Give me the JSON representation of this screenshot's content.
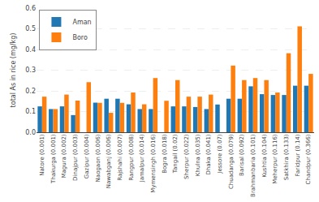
{
  "chart_data": {
    "type": "bar",
    "categories": [
      "Natore (0.001)",
      "Thakurga (0.001)",
      "Magura (0.002)",
      "Dinajpur (0.003)",
      "Gazipur (0.004)",
      "Naogaon (0.006)",
      "Nawabganj (0.006)",
      "Rajshahi (0.007)",
      "Rangpur (0.008)",
      "Jamalpur (0.014)",
      "Mymensingh (0.016)",
      "Bogra (0.018)",
      "Tangail (0.02)",
      "Sherpur (0.022)",
      "Khulna (0.035)",
      "Dhaka (0.041)",
      "Jessore (0.07)",
      "Chuadanga (0.079)",
      "Barisal (0.092)",
      "Brahmanbaria (0.101)",
      "Kushtia (0.104)",
      "Meherpur (0.116)",
      "Satkhira (0.133)",
      "Faridpur (0.14)",
      "Chandpur (0.366)"
    ],
    "series": [
      {
        "name": "Aman",
        "values": [
          0.125,
          0.112,
          0.125,
          0.083,
          0.0,
          0.143,
          0.162,
          0.162,
          0.135,
          0.112,
          0.112,
          0.0,
          0.125,
          0.125,
          0.122,
          0.112,
          0.134,
          0.162,
          0.162,
          0.222,
          0.184,
          0.18,
          0.18,
          0.225,
          0.225
        ]
      },
      {
        "name": "Boro",
        "values": [
          0.172,
          0.112,
          0.182,
          0.153,
          0.242,
          0.142,
          0.094,
          0.142,
          0.192,
          0.135,
          0.262,
          0.152,
          0.252,
          0.172,
          0.172,
          0.182,
          0.0,
          0.322,
          0.252,
          0.262,
          0.252,
          0.192,
          0.382,
          0.512,
          0.282
        ]
      }
    ],
    "ylabel": "total As in rice (mg/kg)",
    "ylim": [
      0.0,
      0.6
    ],
    "yticks": [
      {
        "value": 0.0,
        "label": "0.0"
      },
      0.1,
      0.2,
      0.3,
      0.4,
      0.5,
      0.6
    ],
    "grid": true,
    "legend": "upper left"
  }
}
